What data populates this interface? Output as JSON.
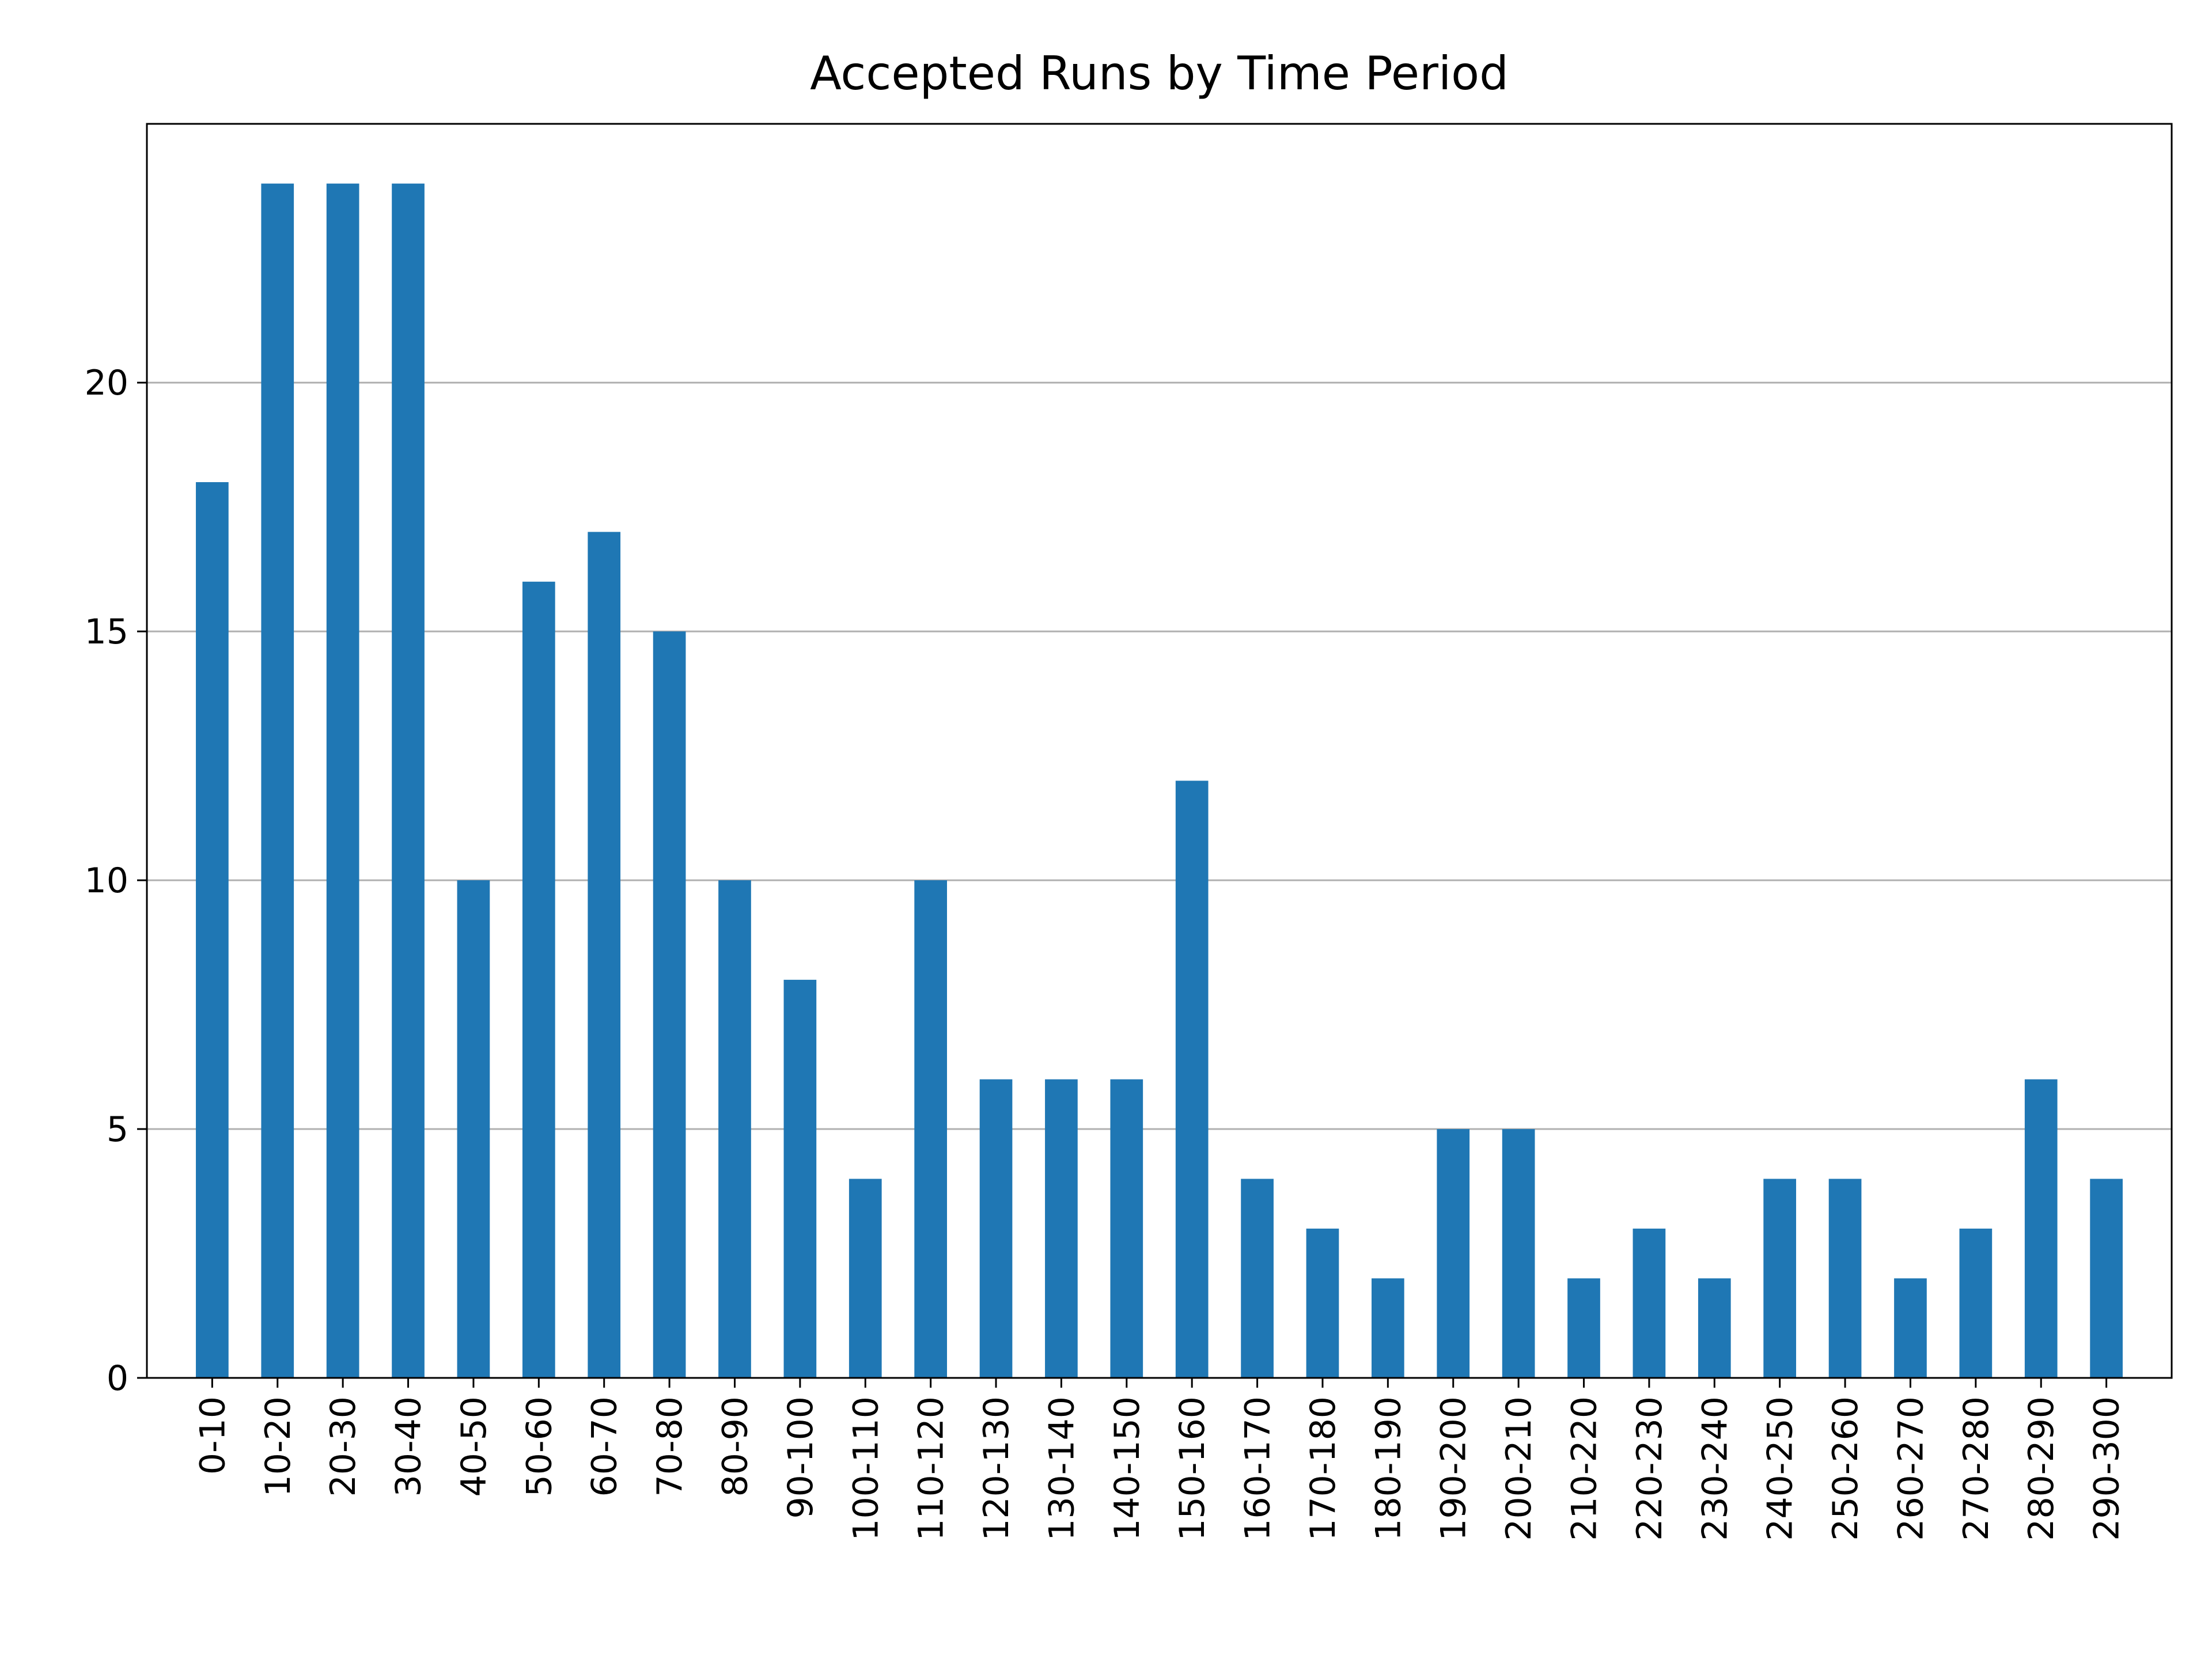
{
  "chart_data": {
    "type": "bar",
    "title": "Accepted Runs by Time Period",
    "xlabel": "",
    "ylabel": "",
    "categories": [
      "0-10",
      "10-20",
      "20-30",
      "30-40",
      "40-50",
      "50-60",
      "60-70",
      "70-80",
      "80-90",
      "90-100",
      "100-110",
      "110-120",
      "120-130",
      "130-140",
      "140-150",
      "150-160",
      "160-170",
      "170-180",
      "180-190",
      "190-200",
      "200-210",
      "210-220",
      "220-230",
      "230-240",
      "240-250",
      "250-260",
      "260-270",
      "270-280",
      "280-290",
      "290-300"
    ],
    "values": [
      18,
      24,
      24,
      24,
      10,
      16,
      17,
      15,
      10,
      8,
      4,
      10,
      6,
      6,
      6,
      12,
      4,
      3,
      2,
      5,
      5,
      2,
      3,
      2,
      4,
      4,
      2,
      3,
      6,
      4
    ],
    "ylim": [
      0,
      25.2
    ],
    "yticks": [
      0,
      5,
      10,
      15,
      20
    ],
    "grid": "y",
    "bar_color": "#1f77b4",
    "legend": "none"
  }
}
